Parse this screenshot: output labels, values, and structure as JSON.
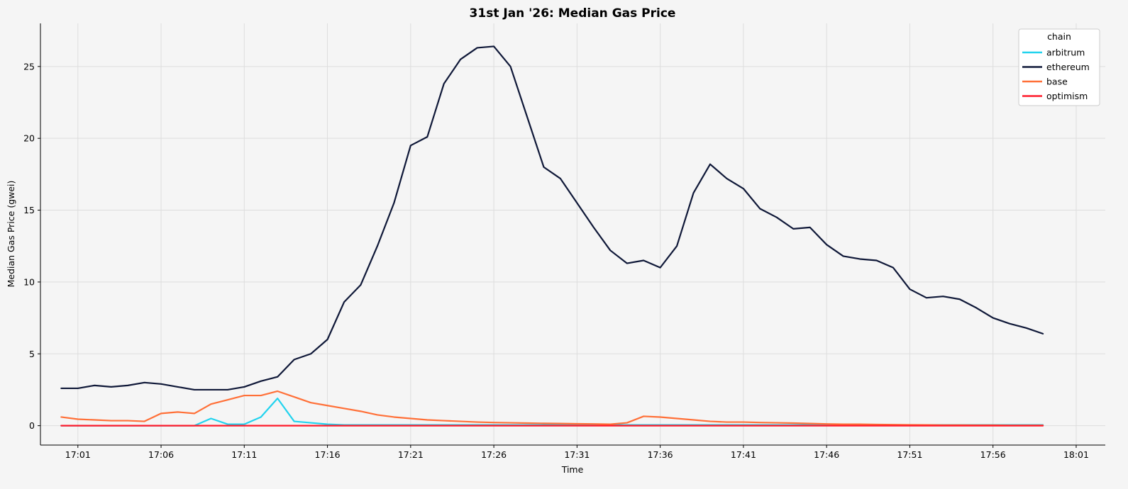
{
  "chart_data": {
    "type": "line",
    "title": "31st Jan '26: Median Gas Price",
    "xlabel": "Time",
    "ylabel": "Median Gas Price (gwei)",
    "x_unit": "time of day (HH:MM)",
    "xlim": [
      "16:58:45",
      "18:02:45"
    ],
    "ylim": [
      -1.35,
      28
    ],
    "x_ticks": [
      "17:01",
      "17:06",
      "17:11",
      "17:16",
      "17:21",
      "17:26",
      "17:31",
      "17:36",
      "17:41",
      "17:46",
      "17:51",
      "17:56",
      "18:01"
    ],
    "y_ticks": [
      0,
      5,
      10,
      15,
      20,
      25
    ],
    "grid": true,
    "legend": {
      "title": "chain",
      "placement": "top-right"
    },
    "colors": {
      "arbitrum": "#22d3ee",
      "ethereum": "#0f1838",
      "base": "#ff7038",
      "optimism": "#ff1a2a"
    },
    "x": [
      "17:00:00",
      "17:01:00",
      "17:02:00",
      "17:03:00",
      "17:04:00",
      "17:05:00",
      "17:06:00",
      "17:07:00",
      "17:08:00",
      "17:09:00",
      "17:10:00",
      "17:11:00",
      "17:12:00",
      "17:13:00",
      "17:14:00",
      "17:15:00",
      "17:16:00",
      "17:17:00",
      "17:18:00",
      "17:19:00",
      "17:20:00",
      "17:21:00",
      "17:22:00",
      "17:23:00",
      "17:24:00",
      "17:25:00",
      "17:26:00",
      "17:27:00",
      "17:28:00",
      "17:29:00",
      "17:30:00",
      "17:31:00",
      "17:32:00",
      "17:33:00",
      "17:34:00",
      "17:35:00",
      "17:36:00",
      "17:37:00",
      "17:38:00",
      "17:39:00",
      "17:40:00",
      "17:41:00",
      "17:42:00",
      "17:43:00",
      "17:44:00",
      "17:45:00",
      "17:46:00",
      "17:47:00",
      "17:48:00",
      "17:49:00",
      "17:50:00",
      "17:51:00",
      "17:52:00",
      "17:53:00",
      "17:54:00",
      "17:55:00",
      "17:56:00",
      "17:57:00",
      "17:58:00",
      "17:59:00"
    ],
    "series": [
      {
        "name": "arbitrum",
        "values": [
          0,
          0,
          0,
          0,
          0,
          0,
          0,
          0,
          0,
          0.5,
          0.1,
          0.1,
          0.6,
          1.9,
          0.3,
          0.2,
          0.1,
          0.05,
          0.05,
          0.05,
          0.05,
          0.05,
          0.05,
          0.05,
          0.05,
          0.05,
          0.05,
          0.05,
          0.05,
          0.05,
          0.05,
          0.05,
          0.05,
          0.05,
          0.05,
          0.05,
          0.05,
          0.05,
          0.05,
          0.05,
          0.05,
          0.05,
          0.05,
          0.05,
          0.05,
          0.05,
          0.05,
          0.05,
          0.05,
          0.05,
          0.05,
          0.05,
          0.05,
          0.05,
          0.05,
          0.05,
          0.05,
          0.05,
          0.05,
          0.05
        ]
      },
      {
        "name": "ethereum",
        "values": [
          2.6,
          2.6,
          2.8,
          2.7,
          2.8,
          3.0,
          2.9,
          2.7,
          2.5,
          2.5,
          2.5,
          2.7,
          3.1,
          3.4,
          4.6,
          5.0,
          6.0,
          8.6,
          9.8,
          12.5,
          15.5,
          19.5,
          20.1,
          23.8,
          25.5,
          26.3,
          26.4,
          25.0,
          21.5,
          18.0,
          17.2,
          15.5,
          13.8,
          12.2,
          11.3,
          11.5,
          11.0,
          12.5,
          16.2,
          18.2,
          17.2,
          16.5,
          15.1,
          14.5,
          13.7,
          13.8,
          12.6,
          11.8,
          11.6,
          11.5,
          11.0,
          9.5,
          8.9,
          9.0,
          8.8,
          8.2,
          7.5,
          7.1,
          6.8,
          6.4
        ]
      },
      {
        "name": "base",
        "values": [
          0.6,
          0.45,
          0.4,
          0.35,
          0.35,
          0.3,
          0.85,
          0.95,
          0.85,
          1.5,
          1.8,
          2.1,
          2.1,
          2.4,
          2.0,
          1.6,
          1.4,
          1.2,
          1.0,
          0.75,
          0.6,
          0.5,
          0.4,
          0.35,
          0.3,
          0.25,
          0.22,
          0.2,
          0.18,
          0.16,
          0.15,
          0.13,
          0.12,
          0.1,
          0.2,
          0.65,
          0.6,
          0.5,
          0.4,
          0.3,
          0.25,
          0.25,
          0.22,
          0.2,
          0.18,
          0.15,
          0.12,
          0.1,
          0.1,
          0.08,
          0.07,
          0.06,
          0.05,
          0.04,
          0.04,
          0.03,
          0.03,
          0.02,
          0.02,
          0.02
        ]
      },
      {
        "name": "optimism",
        "values": [
          0,
          0,
          0,
          0,
          0,
          0,
          0,
          0,
          0,
          0,
          0,
          0,
          0,
          0,
          0,
          0,
          0,
          0,
          0,
          0,
          0,
          0,
          0,
          0,
          0,
          0,
          0,
          0,
          0,
          0,
          0,
          0,
          0,
          0,
          0,
          0,
          0,
          0,
          0,
          0,
          0,
          0,
          0,
          0,
          0,
          0,
          0,
          0,
          0,
          0,
          0,
          0,
          0,
          0,
          0,
          0,
          0,
          0,
          0,
          0
        ]
      }
    ]
  }
}
